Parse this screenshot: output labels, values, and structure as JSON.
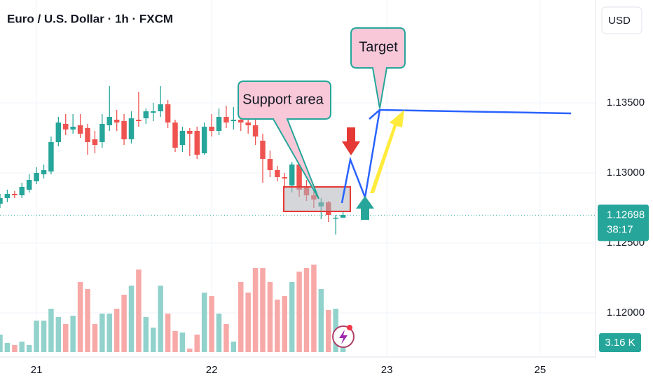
{
  "chart_data": {
    "type": "candlestick",
    "title": "Euro / U.S. Dollar · 1h · FXCM",
    "currency": "USD",
    "x": [
      -5,
      -4,
      -3,
      -2,
      -1,
      0,
      1,
      2,
      3,
      4,
      5,
      6,
      7,
      8,
      9,
      10,
      11,
      12,
      13,
      14,
      15,
      16,
      17,
      18,
      19,
      20,
      21,
      22,
      23,
      24,
      25,
      26,
      27,
      28,
      29,
      30,
      31,
      32,
      33,
      34,
      35,
      36,
      37,
      38,
      39,
      40,
      41,
      42
    ],
    "open": [
      1.1278,
      1.1282,
      1.1285,
      1.1284,
      1.1288,
      1.1294,
      1.1299,
      1.1301,
      1.1322,
      1.1335,
      1.1331,
      1.1334,
      1.1332,
      1.1324,
      1.1322,
      1.1334,
      1.1338,
      1.1337,
      1.1324,
      1.1338,
      1.1339,
      1.1343,
      1.1344,
      1.1349,
      1.1336,
      1.132,
      1.133,
      1.133,
      1.1314,
      1.1333,
      1.133,
      1.134,
      1.1337,
      1.1338,
      1.1336,
      1.1334,
      1.1323,
      1.131,
      1.1302,
      1.1297,
      1.1291,
      1.1306,
      1.129,
      1.1284,
      1.1276,
      1.1279,
      1.1268,
      1.1268
    ],
    "high": [
      1.1285,
      1.1288,
      1.1287,
      1.1293,
      1.1299,
      1.1304,
      1.1306,
      1.1326,
      1.134,
      1.1342,
      1.1342,
      1.1342,
      1.1335,
      1.133,
      1.1342,
      1.1362,
      1.1345,
      1.1342,
      1.1344,
      1.1358,
      1.1346,
      1.135,
      1.1362,
      1.1352,
      1.1338,
      1.1333,
      1.1332,
      1.1333,
      1.1336,
      1.1342,
      1.1346,
      1.1348,
      1.1347,
      1.1342,
      1.134,
      1.1338,
      1.1328,
      1.1316,
      1.1305,
      1.13,
      1.1308,
      1.1314,
      1.1295,
      1.1288,
      1.1282,
      1.128,
      1.127,
      1.1273
    ],
    "low": [
      1.1275,
      1.1279,
      1.1282,
      1.1282,
      1.1286,
      1.1292,
      1.1296,
      1.1299,
      1.1319,
      1.1327,
      1.1328,
      1.1325,
      1.1313,
      1.1314,
      1.1318,
      1.133,
      1.133,
      1.132,
      1.1321,
      1.1333,
      1.1335,
      1.1337,
      1.134,
      1.1332,
      1.1315,
      1.1315,
      1.1312,
      1.131,
      1.1313,
      1.1326,
      1.1327,
      1.1332,
      1.1331,
      1.133,
      1.1328,
      1.132,
      1.1293,
      1.1297,
      1.1294,
      1.1289,
      1.1286,
      1.1283,
      1.128,
      1.1275,
      1.1267,
      1.1265,
      1.1256,
      1.1268
    ],
    "close": [
      1.1282,
      1.1285,
      1.1284,
      1.129,
      1.1295,
      1.13,
      1.1302,
      1.1322,
      1.1336,
      1.1331,
      1.1333,
      1.1328,
      1.1322,
      1.132,
      1.1335,
      1.134,
      1.1336,
      1.1324,
      1.1339,
      1.1337,
      1.1344,
      1.1344,
      1.1349,
      1.1336,
      1.1318,
      1.133,
      1.1328,
      1.1313,
      1.1333,
      1.133,
      1.134,
      1.1336,
      1.1338,
      1.1336,
      1.1334,
      1.1326,
      1.131,
      1.1302,
      1.1297,
      1.1296,
      1.1306,
      1.1288,
      1.1284,
      1.1281,
      1.1279,
      1.127,
      1.1268,
      1.127
    ],
    "volume": [
      25,
      13,
      10,
      15,
      10,
      45,
      45,
      62,
      50,
      40,
      52,
      100,
      90,
      40,
      55,
      55,
      62,
      82,
      95,
      118,
      50,
      35,
      95,
      55,
      30,
      28,
      5,
      25,
      85,
      80,
      55,
      40,
      15,
      100,
      85,
      120,
      120,
      100,
      75,
      80,
      100,
      115,
      120,
      125,
      90,
      60,
      62,
      10
    ],
    "vlim": [
      0,
      130
    ],
    "up_color": "#26a69a",
    "down_color": "#ef5350",
    "up_volume_color": "#92d2cc",
    "down_volume_color": "#f7a9a7",
    "xlim": [
      -5,
      76.6
    ],
    "xticks": [
      {
        "value": 0,
        "label": "21"
      },
      {
        "value": 24,
        "label": "22"
      },
      {
        "value": 48,
        "label": "23"
      },
      {
        "value": 69,
        "label": "25"
      }
    ],
    "ylim": [
      1.11685,
      1.14235
    ],
    "yticks": [
      {
        "value": 1.12,
        "label": "1.12000"
      },
      {
        "value": 1.125,
        "label": "1.12500"
      },
      {
        "value": 1.13,
        "label": "1.13000"
      },
      {
        "value": 1.135,
        "label": "1.13500"
      }
    ],
    "grid": true,
    "last_price": 1.12698,
    "countdown": "38:17",
    "volume_label": "3.16 K",
    "annotations": [
      "Support area",
      "Target"
    ]
  }
}
